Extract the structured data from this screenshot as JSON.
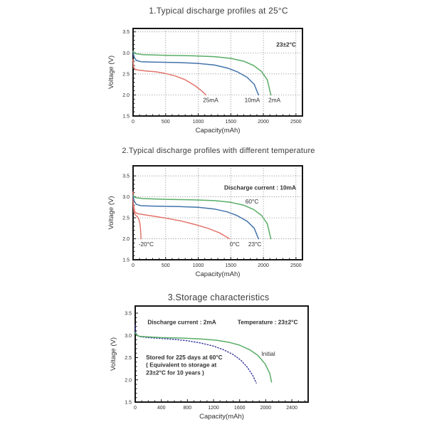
{
  "page": {
    "background": "#ffffff"
  },
  "colors": {
    "red": "#e2746c",
    "blue": "#4273ab",
    "green": "#58ad66",
    "navy": "#3d3da0",
    "frame": "#161616",
    "grid": "#5f5f5f",
    "text": "#2f2f2f"
  },
  "chart_data": [
    {
      "type": "line",
      "title": "1.Typical discharge profiles at 25°C",
      "xlabel": "Capacity(mAh)",
      "ylabel": "Voltage (V)",
      "xlim": [
        0,
        2600
      ],
      "ylim": [
        1.5,
        3.58
      ],
      "grid": true,
      "x_minor_step": 100,
      "y_minor_step": 0.1,
      "xticks": [
        {
          "value": 0,
          "label": "0"
        },
        {
          "value": 500,
          "label": "500"
        },
        {
          "value": 1000,
          "label": "1000"
        },
        {
          "value": 1500,
          "label": "1500"
        },
        {
          "value": 2000,
          "label": "2000"
        },
        {
          "value": 2500,
          "label": "2500"
        }
      ],
      "yticks": [
        {
          "value": 1.5,
          "label": "1.5"
        },
        {
          "value": 2.0,
          "label": "2.0"
        },
        {
          "value": 2.5,
          "label": "2.5"
        },
        {
          "value": 3.0,
          "label": "3.0"
        },
        {
          "value": 3.5,
          "label": "3.5"
        }
      ],
      "annotations": [
        {
          "text": "23±2°C",
          "x": 2350,
          "y": 3.15
        }
      ],
      "series": [
        {
          "id": "25mA",
          "name": "25mA",
          "color": "#e2746c",
          "dash": null,
          "points": [
            [
              0,
              2.84
            ],
            [
              8,
              2.66
            ],
            [
              30,
              2.61
            ],
            [
              80,
              2.59
            ],
            [
              200,
              2.57
            ],
            [
              350,
              2.55
            ],
            [
              500,
              2.51
            ],
            [
              650,
              2.45
            ],
            [
              800,
              2.36
            ],
            [
              950,
              2.22
            ],
            [
              1050,
              2.1
            ],
            [
              1120,
              2.0
            ]
          ]
        },
        {
          "id": "10mA",
          "name": "10mA",
          "color": "#4273ab",
          "dash": null,
          "points": [
            [
              0,
              3.04
            ],
            [
              15,
              2.9
            ],
            [
              50,
              2.82
            ],
            [
              120,
              2.79
            ],
            [
              300,
              2.78
            ],
            [
              700,
              2.77
            ],
            [
              1000,
              2.75
            ],
            [
              1250,
              2.71
            ],
            [
              1450,
              2.64
            ],
            [
              1600,
              2.55
            ],
            [
              1750,
              2.42
            ],
            [
              1860,
              2.25
            ],
            [
              1925,
              2.0
            ]
          ]
        },
        {
          "id": "2mA",
          "name": "2mA",
          "color": "#58ad66",
          "dash": null,
          "points": [
            [
              0,
              3.03
            ],
            [
              40,
              2.98
            ],
            [
              150,
              2.96
            ],
            [
              500,
              2.94
            ],
            [
              900,
              2.93
            ],
            [
              1250,
              2.91
            ],
            [
              1500,
              2.87
            ],
            [
              1700,
              2.8
            ],
            [
              1850,
              2.7
            ],
            [
              1970,
              2.56
            ],
            [
              2060,
              2.36
            ],
            [
              2115,
              2.0
            ]
          ]
        }
      ],
      "series_labels": [
        {
          "text": "25mA",
          "x": 1190,
          "y": 1.83
        },
        {
          "text": "10mA",
          "x": 1830,
          "y": 1.83
        },
        {
          "text": "2mA",
          "x": 2170,
          "y": 1.83
        }
      ]
    },
    {
      "type": "line",
      "title": "2.Typical discharge profiles with different temperature",
      "xlabel": "Capacity(mAh)",
      "ylabel": "Voltage (V)",
      "xlim": [
        0,
        2600
      ],
      "ylim": [
        1.5,
        3.74
      ],
      "grid": true,
      "x_minor_step": 100,
      "y_minor_step": 0.1,
      "xticks": [
        {
          "value": 0,
          "label": "0"
        },
        {
          "value": 500,
          "label": "500"
        },
        {
          "value": 1000,
          "label": "1000"
        },
        {
          "value": 1500,
          "label": "1500"
        },
        {
          "value": 2000,
          "label": "2000"
        },
        {
          "value": 2500,
          "label": "2500"
        }
      ],
      "yticks": [
        {
          "value": 1.5,
          "label": "1.5"
        },
        {
          "value": 2.0,
          "label": "2.0"
        },
        {
          "value": 2.5,
          "label": "2.5"
        },
        {
          "value": 3.0,
          "label": "3.0"
        },
        {
          "value": 3.5,
          "label": "3.5"
        }
      ],
      "annotations": [
        {
          "text": "Discharge current : 10mA",
          "x": 1950,
          "y": 3.17
        }
      ],
      "series": [
        {
          "id": "minus20C",
          "name": "-20°C",
          "color": "#e2746c",
          "dash": null,
          "points": [
            [
              0,
              3.02
            ],
            [
              5,
              2.76
            ],
            [
              15,
              2.62
            ],
            [
              40,
              2.56
            ],
            [
              70,
              2.52
            ],
            [
              90,
              2.46
            ],
            [
              105,
              2.36
            ],
            [
              115,
              2.22
            ],
            [
              122,
              2.0
            ]
          ]
        },
        {
          "id": "0C",
          "name": "0°C",
          "color": "#e2746c",
          "dash": null,
          "points": [
            [
              0,
              3.12
            ],
            [
              6,
              2.82
            ],
            [
              25,
              2.64
            ],
            [
              70,
              2.6
            ],
            [
              180,
              2.57
            ],
            [
              350,
              2.53
            ],
            [
              550,
              2.48
            ],
            [
              750,
              2.42
            ],
            [
              950,
              2.34
            ],
            [
              1150,
              2.25
            ],
            [
              1330,
              2.14
            ],
            [
              1480,
              2.0
            ]
          ]
        },
        {
          "id": "23C",
          "name": "23°C",
          "color": "#4273ab",
          "dash": null,
          "points": [
            [
              0,
              3.04
            ],
            [
              15,
              2.9
            ],
            [
              50,
              2.82
            ],
            [
              120,
              2.79
            ],
            [
              300,
              2.78
            ],
            [
              700,
              2.77
            ],
            [
              1000,
              2.75
            ],
            [
              1250,
              2.71
            ],
            [
              1450,
              2.64
            ],
            [
              1600,
              2.55
            ],
            [
              1750,
              2.42
            ],
            [
              1860,
              2.25
            ],
            [
              1925,
              2.0
            ]
          ]
        },
        {
          "id": "60C",
          "name": "60°C",
          "color": "#58ad66",
          "dash": null,
          "points": [
            [
              0,
              3.03
            ],
            [
              40,
              2.98
            ],
            [
              150,
              2.96
            ],
            [
              500,
              2.94
            ],
            [
              900,
              2.93
            ],
            [
              1250,
              2.91
            ],
            [
              1500,
              2.87
            ],
            [
              1700,
              2.8
            ],
            [
              1850,
              2.7
            ],
            [
              1970,
              2.56
            ],
            [
              2060,
              2.36
            ],
            [
              2115,
              2.0
            ]
          ]
        }
      ],
      "series_labels": [
        {
          "text": "-20°C",
          "x": 200,
          "y": 1.82
        },
        {
          "text": "0°C",
          "x": 1560,
          "y": 1.82
        },
        {
          "text": "23°C",
          "x": 1870,
          "y": 1.82
        },
        {
          "text": "60°C",
          "x": 1825,
          "y": 2.84
        }
      ]
    },
    {
      "type": "line",
      "title": "3.Storage characteristics",
      "xlabel": "Capacity(mAh)",
      "ylabel": "Voltage (V)",
      "xlim": [
        0,
        2650
      ],
      "ylim": [
        1.5,
        3.66
      ],
      "grid": false,
      "x_minor_step": 100,
      "y_minor_step": 0.1,
      "xticks": [
        {
          "value": 0,
          "label": "0"
        },
        {
          "value": 400,
          "label": "400"
        },
        {
          "value": 800,
          "label": "800"
        },
        {
          "value": 1200,
          "label": "1200"
        },
        {
          "value": 1600,
          "label": "1600"
        },
        {
          "value": 2000,
          "label": "2000"
        },
        {
          "value": 2400,
          "label": "2400"
        }
      ],
      "yticks": [
        {
          "value": 1.5,
          "label": "1.5"
        },
        {
          "value": 2.0,
          "label": "2.0"
        },
        {
          "value": 2.5,
          "label": "2.5"
        },
        {
          "value": 3.0,
          "label": "3.0"
        },
        {
          "value": 3.5,
          "label": "3.5"
        }
      ],
      "annotations": [
        {
          "text": "Discharge current : 2mA",
          "x": 715,
          "y": 3.25
        },
        {
          "text": "Temperature : 23±2°C",
          "x": 2030,
          "y": 3.25
        },
        {
          "text": "Stored for 225 days at 60°C",
          "x": 165,
          "y": 2.46,
          "anchor": "start"
        },
        {
          "text": "( Equivalent to storage at",
          "x": 165,
          "y": 2.29,
          "anchor": "start"
        },
        {
          "text": "23±2°C for 10 years )",
          "x": 165,
          "y": 2.12,
          "anchor": "start"
        }
      ],
      "series": [
        {
          "id": "stored",
          "name": "Stored for 225 days at 60°C",
          "color": "#3d3da0",
          "dash": "1.2 2.6",
          "points": [
            [
              0,
              3.22
            ],
            [
              8,
              3.06
            ],
            [
              30,
              3.0
            ],
            [
              80,
              2.97
            ],
            [
              200,
              2.95
            ],
            [
              400,
              2.93
            ],
            [
              600,
              2.91
            ],
            [
              800,
              2.88
            ],
            [
              1000,
              2.83
            ],
            [
              1200,
              2.76
            ],
            [
              1350,
              2.68
            ],
            [
              1500,
              2.57
            ],
            [
              1620,
              2.44
            ],
            [
              1720,
              2.28
            ],
            [
              1800,
              2.1
            ],
            [
              1855,
              1.93
            ]
          ]
        },
        {
          "id": "initial",
          "name": "Initial",
          "color": "#58ad66",
          "dash": null,
          "points": [
            [
              0,
              3.06
            ],
            [
              20,
              3.01
            ],
            [
              60,
              2.98
            ],
            [
              150,
              2.97
            ],
            [
              400,
              2.95
            ],
            [
              700,
              2.94
            ],
            [
              1000,
              2.92
            ],
            [
              1250,
              2.89
            ],
            [
              1450,
              2.84
            ],
            [
              1600,
              2.78
            ],
            [
              1750,
              2.68
            ],
            [
              1880,
              2.55
            ],
            [
              1990,
              2.36
            ],
            [
              2060,
              2.15
            ],
            [
              2090,
              1.95
            ]
          ]
        }
      ],
      "series_labels": [
        {
          "text": "Initial",
          "x": 2040,
          "y": 2.54
        }
      ]
    }
  ]
}
